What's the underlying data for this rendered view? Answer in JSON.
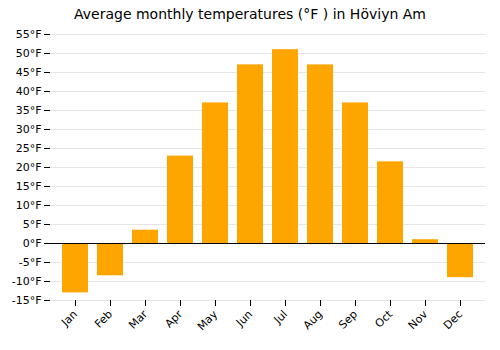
{
  "chart_data": {
    "type": "bar",
    "title": "Average monthly temperatures (°F ) in Höviyn Am",
    "categories": [
      "Jan",
      "Feb",
      "Mar",
      "Apr",
      "May",
      "Jun",
      "Jul",
      "Aug",
      "Sep",
      "Oct",
      "Nov",
      "Dec"
    ],
    "values": [
      -13,
      -8.5,
      3.5,
      23,
      37,
      47,
      51,
      47,
      37,
      21.5,
      1,
      -9
    ],
    "color": "#FFA500",
    "ylim": [
      -15,
      55
    ],
    "yticks": [
      {
        "value": -15,
        "label": "-15°F"
      },
      {
        "value": -10,
        "label": "-10°F"
      },
      {
        "value": -5,
        "label": "-5°F"
      },
      {
        "value": 0,
        "label": "0°F"
      },
      {
        "value": 5,
        "label": "5°F"
      },
      {
        "value": 10,
        "label": "10°F"
      },
      {
        "value": 15,
        "label": "15°F"
      },
      {
        "value": 20,
        "label": "20°F"
      },
      {
        "value": 25,
        "label": "25°F"
      },
      {
        "value": 30,
        "label": "30°F"
      },
      {
        "value": 35,
        "label": "35°F"
      },
      {
        "value": 40,
        "label": "40°F"
      },
      {
        "value": 45,
        "label": "45°F"
      },
      {
        "value": 50,
        "label": "50°F"
      },
      {
        "value": 55,
        "label": "55°F"
      }
    ],
    "grid": true
  }
}
